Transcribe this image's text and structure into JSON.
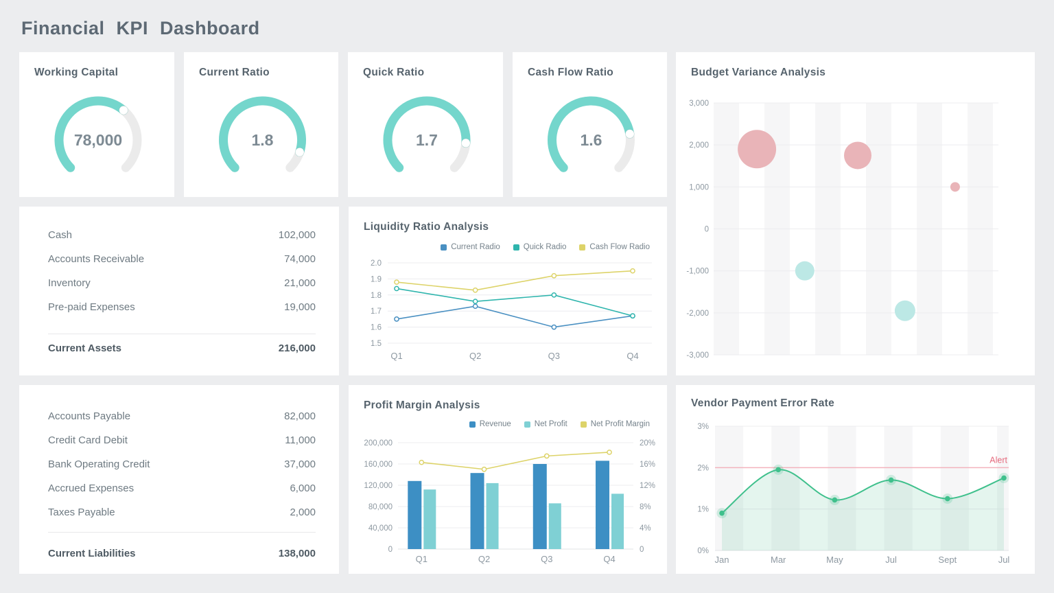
{
  "page": {
    "title": "Financial KPI Dashboard"
  },
  "colors": {
    "background": "#ecedef",
    "card": "#ffffff",
    "heading": "#56636d",
    "tick": "#8d98a1",
    "grid": "#ececef",
    "stripe": "#f6f6f7",
    "axis_line": "#e0e3e6",
    "gauge_fill": "#74d6cc",
    "gauge_track": "#ebebeb",
    "gauge_value": "#7d8a93"
  },
  "chart_data": [
    {
      "type": "gauge",
      "title": "Working Capital",
      "value": "78,000",
      "fraction": 0.65
    },
    {
      "type": "gauge",
      "title": "Current Ratio",
      "value": "1.8",
      "fraction": 0.9
    },
    {
      "type": "gauge",
      "title": "Quick Ratio",
      "value": "1.7",
      "fraction": 0.85
    },
    {
      "type": "gauge",
      "title": "Cash Flow Ratio",
      "value": "1.6",
      "fraction": 0.8
    },
    {
      "type": "scatter",
      "title": "Budget Variance Analysis",
      "ylim": [
        -3000,
        3000
      ],
      "yticks": [
        "3,000",
        "2,000",
        "1,000",
        "0",
        "-1,000",
        "-2,000",
        "-3,000"
      ],
      "grid": true,
      "stripes": true,
      "points": [
        {
          "x": 0.152,
          "y": 1900,
          "r": 28,
          "color": "#e9b4b8"
        },
        {
          "x": 0.32,
          "y": -1000,
          "r": 14,
          "color": "#bce8e5"
        },
        {
          "x": 0.506,
          "y": 1750,
          "r": 20,
          "color": "#e9b4b8"
        },
        {
          "x": 0.672,
          "y": -1950,
          "r": 15,
          "color": "#bce8e5"
        },
        {
          "x": 0.848,
          "y": 1000,
          "r": 7,
          "color": "#e9b4b8"
        }
      ]
    },
    {
      "type": "table",
      "rows": [
        [
          "Cash",
          "102,000"
        ],
        [
          "Accounts Receivable",
          "74,000"
        ],
        [
          "Inventory",
          "21,000"
        ],
        [
          "Pre-paid Expenses",
          "19,000"
        ]
      ],
      "total_label": "Current Assets",
      "total_value": "216,000"
    },
    {
      "type": "line",
      "title": "Liquidity Ratio Analysis",
      "categories": [
        "Q1",
        "Q2",
        "Q3",
        "Q4"
      ],
      "ylim": [
        1.5,
        2.0
      ],
      "yticks": [
        "2.0",
        "1.9",
        "1.8",
        "1.7",
        "1.6",
        "1.5"
      ],
      "legend_position": "top-right",
      "grid": true,
      "series": [
        {
          "name": "Current Radio",
          "color": "#4a90c2",
          "values": [
            1.65,
            1.73,
            1.6,
            1.67
          ]
        },
        {
          "name": "Quick Radio",
          "color": "#2fb5ad",
          "values": [
            1.84,
            1.76,
            1.8,
            1.67
          ]
        },
        {
          "name": "Cash Flow Radio",
          "color": "#ddd369",
          "values": [
            1.88,
            1.83,
            1.92,
            1.95
          ]
        }
      ]
    },
    {
      "type": "table",
      "rows": [
        [
          "Accounts Payable",
          "82,000"
        ],
        [
          "Credit Card Debit",
          "11,000"
        ],
        [
          "Bank Operating Credit",
          "37,000"
        ],
        [
          "Accrued Expenses",
          "6,000"
        ],
        [
          "Taxes Payable",
          "2,000"
        ]
      ],
      "total_label": "Current Liabilities",
      "total_value": "138,000"
    },
    {
      "type": "bar",
      "title": "Profit Margin Analysis",
      "categories": [
        "Q1",
        "Q2",
        "Q3",
        "Q4"
      ],
      "left_axis": {
        "lim": [
          0,
          200000
        ],
        "ticks": [
          "200,000",
          "160,000",
          "120,000",
          "80,000",
          "40,000",
          "0"
        ]
      },
      "right_axis": {
        "lim": [
          0,
          20
        ],
        "ticks": [
          "20%",
          "16%",
          "12%",
          "8%",
          "4%",
          "0"
        ]
      },
      "legend_position": "top-right",
      "grid": true,
      "series": [
        {
          "name": "Revenue",
          "kind": "bar",
          "color": "#3d8fc4",
          "values": [
            128000,
            143000,
            160000,
            166000
          ]
        },
        {
          "name": "Net Profit",
          "kind": "bar",
          "color": "#7fd0d4",
          "values": [
            112000,
            124000,
            86000,
            104000
          ]
        },
        {
          "name": "Net Profit Margin",
          "kind": "line",
          "color": "#ddd369",
          "values": [
            16.3,
            15.0,
            17.5,
            18.2
          ]
        }
      ]
    },
    {
      "type": "area",
      "title": "Vendor Payment Error Rate",
      "categories": [
        "Jan",
        "Mar",
        "May",
        "Jul",
        "Sept",
        "Jul"
      ],
      "ylim": [
        0,
        3
      ],
      "yticks": [
        "3%",
        "2%",
        "1%",
        "0%"
      ],
      "grid": true,
      "stripes": true,
      "line_color": "#3fc08c",
      "fill_color": "rgba(77,186,144,0.15)",
      "values": [
        0.9,
        1.95,
        1.22,
        1.7,
        1.25,
        1.75
      ],
      "alert": {
        "label": "Alert",
        "value": 2,
        "text_color": "#e56a7d",
        "line_color": "#f3b3bd"
      }
    }
  ]
}
